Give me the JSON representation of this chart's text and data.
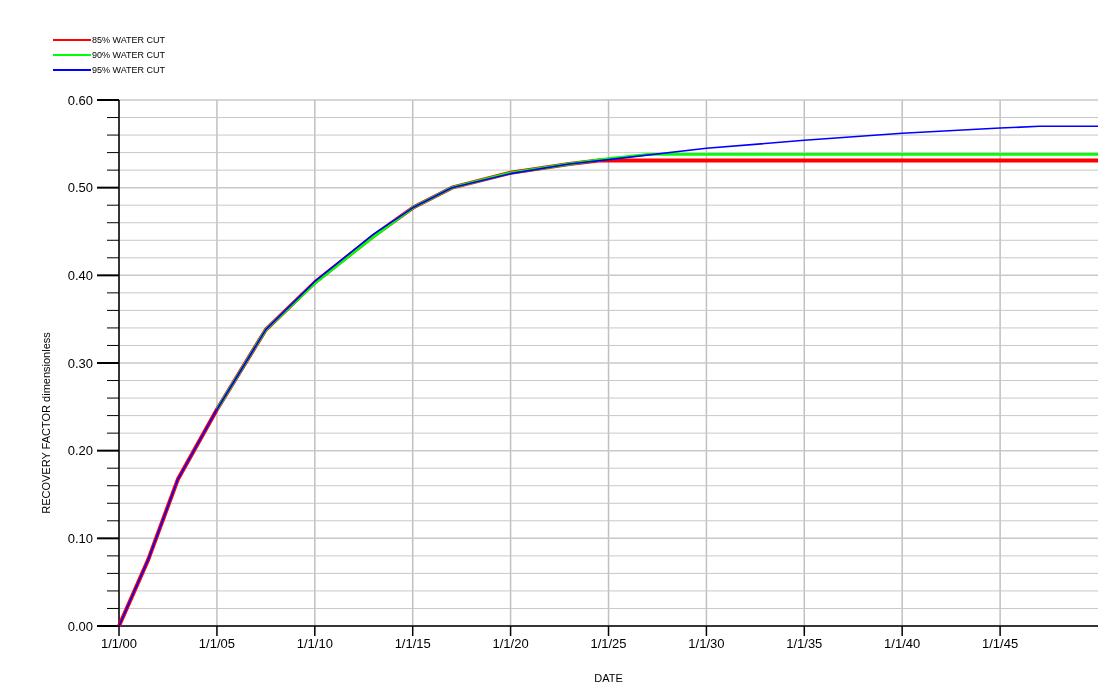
{
  "chart_data": {
    "type": "line",
    "xlabel": "DATE",
    "ylabel": "RECOVERY FACTOR  dimensionless",
    "xlim": [
      "2000-01-01",
      "2050-01-01"
    ],
    "ylim": [
      0,
      0.6
    ],
    "xticks": [
      {
        "value": "2000-01-01",
        "label": "1/1/00"
      },
      {
        "value": "2005-01-01",
        "label": "1/1/05"
      },
      {
        "value": "2010-01-01",
        "label": "1/1/10"
      },
      {
        "value": "2015-01-01",
        "label": "1/1/15"
      },
      {
        "value": "2020-01-01",
        "label": "1/1/20"
      },
      {
        "value": "2025-01-01",
        "label": "1/1/25"
      },
      {
        "value": "2030-01-01",
        "label": "1/1/30"
      },
      {
        "value": "2035-01-01",
        "label": "1/1/35"
      },
      {
        "value": "2040-01-01",
        "label": "1/1/40"
      },
      {
        "value": "2045-01-01",
        "label": "1/1/45"
      }
    ],
    "yticks": [
      {
        "value": 0,
        "label": "0.00"
      },
      {
        "value": 0.02,
        "label": null
      },
      {
        "value": 0.04,
        "label": null
      },
      {
        "value": 0.06,
        "label": null
      },
      {
        "value": 0.08,
        "label": null
      },
      {
        "value": 0.1,
        "label": "0.10"
      },
      {
        "value": 0.12,
        "label": null
      },
      {
        "value": 0.14,
        "label": null
      },
      {
        "value": 0.16,
        "label": null
      },
      {
        "value": 0.18,
        "label": null
      },
      {
        "value": 0.2,
        "label": "0.20"
      },
      {
        "value": 0.22,
        "label": null
      },
      {
        "value": 0.24,
        "label": null
      },
      {
        "value": 0.26,
        "label": null
      },
      {
        "value": 0.28,
        "label": null
      },
      {
        "value": 0.3,
        "label": "0.30"
      },
      {
        "value": 0.32,
        "label": null
      },
      {
        "value": 0.34,
        "label": null
      },
      {
        "value": 0.36,
        "label": null
      },
      {
        "value": 0.38,
        "label": null
      },
      {
        "value": 0.4,
        "label": "0.40"
      },
      {
        "value": 0.42,
        "label": null
      },
      {
        "value": 0.44,
        "label": null
      },
      {
        "value": 0.46,
        "label": null
      },
      {
        "value": 0.48,
        "label": null
      },
      {
        "value": 0.5,
        "label": "0.50"
      },
      {
        "value": 0.52,
        "label": null
      },
      {
        "value": 0.54,
        "label": null
      },
      {
        "value": 0.56,
        "label": null
      },
      {
        "value": 0.58,
        "label": null
      },
      {
        "value": 0.6,
        "label": "0.60"
      }
    ],
    "grid": true,
    "legend": "top left",
    "series": [
      {
        "name": "85% WATER CUT",
        "color": "#ff0000",
        "x": [
          "2000-01-01",
          "2001-07-01",
          "2003-01-01",
          "2005-01-01",
          "2007-07-01",
          "2010-01-01",
          "2013-01-01",
          "2015-01-01",
          "2017-01-01",
          "2020-01-01",
          "2023-01-01",
          "2024-07-01",
          "2050-01-01"
        ],
        "values": [
          0,
          0.076,
          0.167,
          0.247,
          0.338,
          0.392,
          0.445,
          0.477,
          0.5,
          0.517,
          0.527,
          0.531,
          0.531
        ]
      },
      {
        "name": "90% WATER CUT",
        "color": "#00ff00",
        "x": [
          "2005-01-01",
          "2007-07-01",
          "2010-01-01",
          "2013-01-01",
          "2015-01-01",
          "2017-01-01",
          "2020-01-01",
          "2023-01-01",
          "2025-01-01",
          "2027-01-01",
          "2050-01-01"
        ],
        "values": [
          0.247,
          0.338,
          0.391,
          0.444,
          0.477,
          0.5,
          0.517,
          0.527,
          0.533,
          0.538,
          0.538
        ]
      },
      {
        "name": "95% WATER CUT",
        "color": "#0000ff",
        "x": [
          "2000-01-01",
          "2001-07-01",
          "2003-01-01",
          "2005-01-01",
          "2007-07-01",
          "2010-01-01",
          "2013-01-01",
          "2015-01-01",
          "2017-01-01",
          "2020-01-01",
          "2023-01-01",
          "2025-01-01",
          "2030-01-01",
          "2035-01-01",
          "2040-01-01",
          "2045-01-01",
          "2047-01-01",
          "2050-01-01"
        ],
        "values": [
          0,
          0.076,
          0.167,
          0.247,
          0.338,
          0.393,
          0.447,
          0.477,
          0.5,
          0.516,
          0.527,
          0.532,
          0.545,
          0.554,
          0.562,
          0.568,
          0.57,
          0.57
        ]
      }
    ]
  }
}
